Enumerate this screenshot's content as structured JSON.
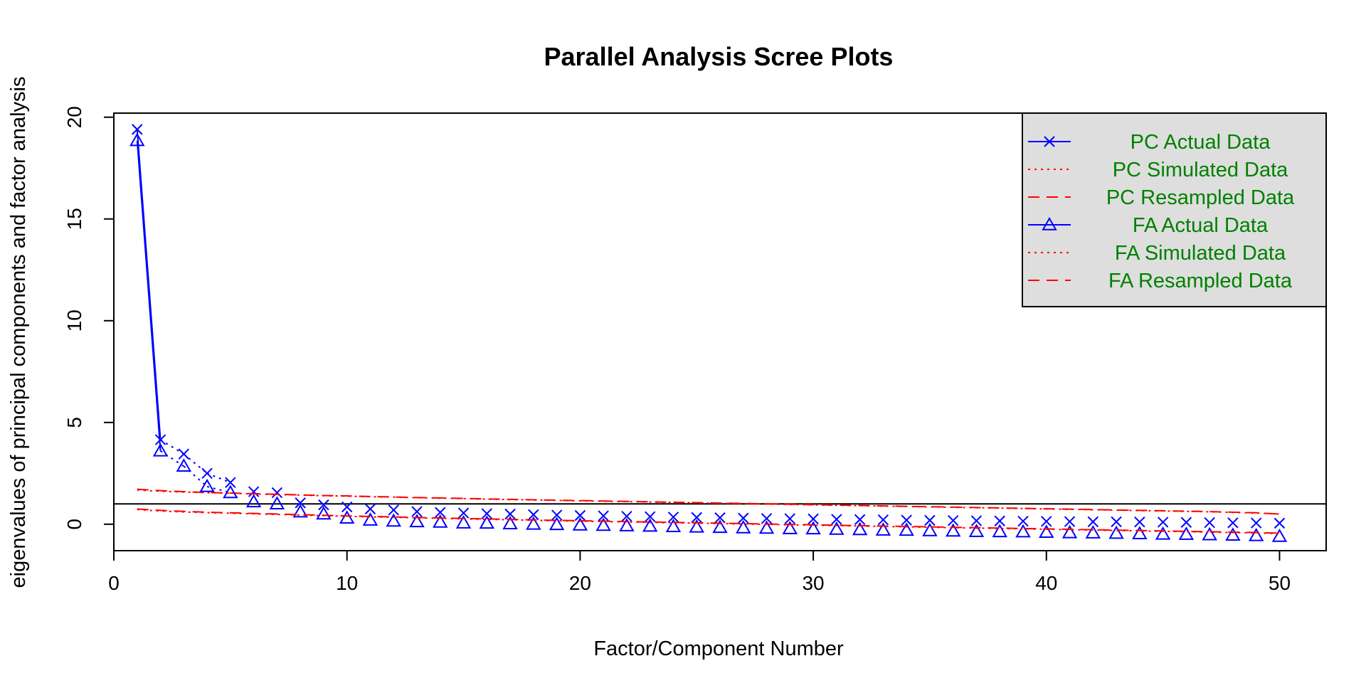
{
  "chart_data": {
    "type": "line",
    "title": "Parallel Analysis Scree Plots",
    "xlabel": "Factor/Component Number",
    "ylabel": "eigenvalues of principal components and factor analysis",
    "xlim": [
      0,
      52
    ],
    "ylim": [
      -1.3,
      20.2
    ],
    "xticks": [
      0,
      10,
      20,
      30,
      40,
      50
    ],
    "yticks": [
      0,
      5,
      10,
      15,
      20
    ],
    "hline": 1,
    "legend_position": "top-right",
    "colors": {
      "actual": "#0000ff",
      "simulated": "#ff0000",
      "resampled": "#ff0000",
      "legend_text": "#008000",
      "legend_bg": "#dedede"
    },
    "x": [
      1,
      2,
      3,
      4,
      5,
      6,
      7,
      8,
      9,
      10,
      11,
      12,
      13,
      14,
      15,
      16,
      17,
      18,
      19,
      20,
      21,
      22,
      23,
      24,
      25,
      26,
      27,
      28,
      29,
      30,
      31,
      32,
      33,
      34,
      35,
      36,
      37,
      38,
      39,
      40,
      41,
      42,
      43,
      44,
      45,
      46,
      47,
      48,
      49,
      50
    ],
    "series": [
      {
        "name": "PC  Actual Data",
        "style": "solid",
        "marker": "x",
        "values": [
          19.4,
          4.15,
          3.45,
          2.5,
          2.05,
          1.6,
          1.55,
          1.05,
          0.95,
          0.85,
          0.75,
          0.7,
          0.62,
          0.58,
          0.55,
          0.52,
          0.5,
          0.47,
          0.45,
          0.43,
          0.41,
          0.39,
          0.37,
          0.35,
          0.33,
          0.32,
          0.3,
          0.28,
          0.27,
          0.26,
          0.24,
          0.23,
          0.22,
          0.2,
          0.19,
          0.18,
          0.17,
          0.16,
          0.15,
          0.14,
          0.13,
          0.12,
          0.12,
          0.11,
          0.1,
          0.09,
          0.08,
          0.07,
          0.06,
          0.05
        ]
      },
      {
        "name": "PC  Simulated Data",
        "style": "dotted",
        "marker": "none",
        "values": [
          1.68,
          1.62,
          1.58,
          1.55,
          1.52,
          1.49,
          1.46,
          1.43,
          1.4,
          1.38,
          1.35,
          1.33,
          1.3,
          1.28,
          1.26,
          1.23,
          1.21,
          1.19,
          1.17,
          1.15,
          1.13,
          1.11,
          1.09,
          1.07,
          1.05,
          1.03,
          1.01,
          0.99,
          0.97,
          0.95,
          0.93,
          0.91,
          0.89,
          0.87,
          0.85,
          0.83,
          0.81,
          0.79,
          0.77,
          0.75,
          0.73,
          0.71,
          0.69,
          0.67,
          0.65,
          0.63,
          0.61,
          0.58,
          0.55,
          0.5
        ]
      },
      {
        "name": "PC  Resampled Data",
        "style": "dashed",
        "marker": "none",
        "values": [
          1.72,
          1.65,
          1.6,
          1.56,
          1.53,
          1.5,
          1.47,
          1.44,
          1.41,
          1.39,
          1.36,
          1.34,
          1.31,
          1.29,
          1.27,
          1.24,
          1.22,
          1.2,
          1.18,
          1.16,
          1.14,
          1.12,
          1.1,
          1.08,
          1.06,
          1.04,
          1.02,
          1.0,
          0.98,
          0.96,
          0.94,
          0.92,
          0.9,
          0.88,
          0.86,
          0.84,
          0.82,
          0.8,
          0.78,
          0.76,
          0.74,
          0.72,
          0.7,
          0.68,
          0.66,
          0.64,
          0.62,
          0.59,
          0.56,
          0.5
        ]
      },
      {
        "name": "FA  Actual Data",
        "style": "solid",
        "marker": "triangle",
        "values": [
          18.85,
          3.6,
          2.85,
          1.85,
          1.55,
          1.1,
          1.0,
          0.6,
          0.5,
          0.3,
          0.2,
          0.15,
          0.12,
          0.1,
          0.06,
          0.05,
          0.02,
          0.0,
          -0.02,
          -0.04,
          -0.06,
          -0.08,
          -0.1,
          -0.12,
          -0.14,
          -0.16,
          -0.18,
          -0.2,
          -0.22,
          -0.23,
          -0.25,
          -0.27,
          -0.29,
          -0.3,
          -0.32,
          -0.34,
          -0.36,
          -0.37,
          -0.38,
          -0.4,
          -0.42,
          -0.43,
          -0.45,
          -0.47,
          -0.49,
          -0.5,
          -0.52,
          -0.54,
          -0.56,
          -0.6
        ]
      },
      {
        "name": "FA  Simulated Data",
        "style": "dotted",
        "marker": "none",
        "values": [
          0.72,
          0.65,
          0.6,
          0.57,
          0.54,
          0.51,
          0.48,
          0.45,
          0.42,
          0.39,
          0.36,
          0.34,
          0.31,
          0.29,
          0.26,
          0.24,
          0.22,
          0.19,
          0.17,
          0.15,
          0.13,
          0.11,
          0.09,
          0.07,
          0.05,
          0.03,
          0.01,
          -0.01,
          -0.03,
          -0.05,
          -0.07,
          -0.09,
          -0.11,
          -0.13,
          -0.15,
          -0.17,
          -0.19,
          -0.21,
          -0.23,
          -0.25,
          -0.27,
          -0.29,
          -0.31,
          -0.33,
          -0.35,
          -0.37,
          -0.39,
          -0.41,
          -0.43,
          -0.46
        ]
      },
      {
        "name": "FA  Resampled Data",
        "style": "dashed",
        "marker": "none",
        "values": [
          0.75,
          0.68,
          0.63,
          0.59,
          0.56,
          0.53,
          0.5,
          0.47,
          0.44,
          0.41,
          0.38,
          0.36,
          0.33,
          0.31,
          0.28,
          0.26,
          0.24,
          0.21,
          0.19,
          0.17,
          0.15,
          0.13,
          0.11,
          0.09,
          0.07,
          0.05,
          0.03,
          0.01,
          -0.01,
          -0.03,
          -0.05,
          -0.07,
          -0.09,
          -0.11,
          -0.13,
          -0.15,
          -0.17,
          -0.19,
          -0.21,
          -0.23,
          -0.25,
          -0.27,
          -0.29,
          -0.31,
          -0.33,
          -0.35,
          -0.37,
          -0.39,
          -0.41,
          -0.44
        ]
      }
    ]
  }
}
